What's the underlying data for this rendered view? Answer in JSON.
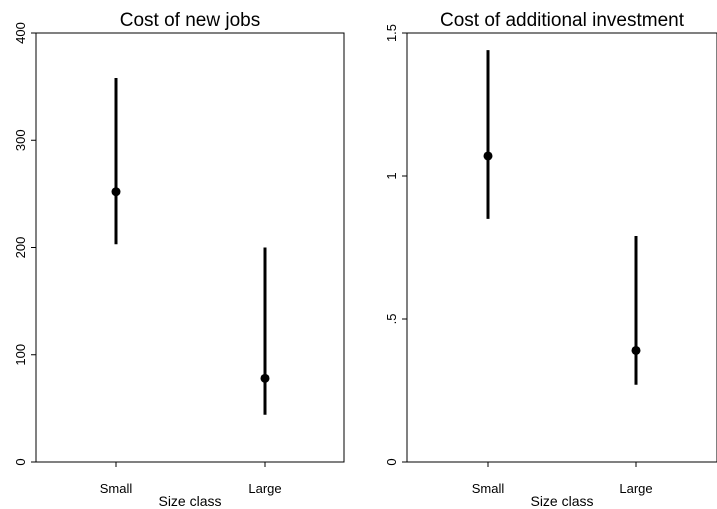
{
  "chart_data": [
    {
      "type": "scatter",
      "title": "Cost of new jobs",
      "xlabel": "Size class",
      "ylabel": "",
      "categories": [
        "Small",
        "Large"
      ],
      "values": [
        252,
        78
      ],
      "ci_low": [
        203,
        44
      ],
      "ci_high": [
        358,
        200
      ],
      "ylim": [
        0,
        400
      ],
      "yticks": [
        0,
        100,
        200,
        300,
        400
      ],
      "ytick_labels": [
        "0",
        "100",
        "200",
        "300",
        "400"
      ],
      "grid": false
    },
    {
      "type": "scatter",
      "title": "Cost of additional investment",
      "xlabel": "Size class",
      "ylabel": "",
      "categories": [
        "Small",
        "Large"
      ],
      "values": [
        1.07,
        0.39
      ],
      "ci_low": [
        0.85,
        0.27
      ],
      "ci_high": [
        1.44,
        0.79
      ],
      "ylim": [
        0,
        1.5
      ],
      "yticks": [
        0,
        0.5,
        1,
        1.5
      ],
      "ytick_labels": [
        "0",
        ".5",
        "1",
        "1.5"
      ],
      "grid": false
    }
  ]
}
